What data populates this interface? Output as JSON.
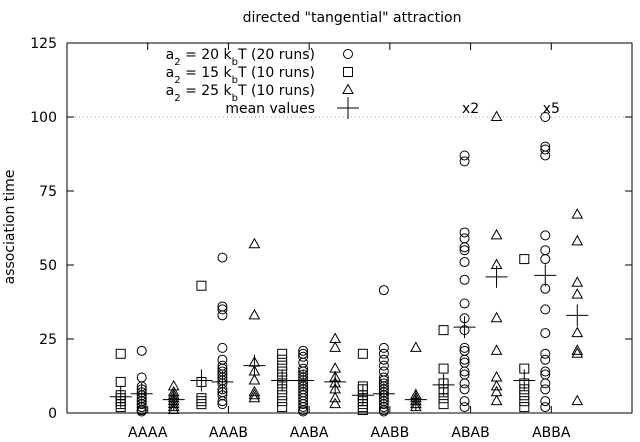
{
  "chart_data": {
    "type": "scatter",
    "title": "directed \"tangential\" attraction",
    "xlabel": "",
    "ylabel": "association time",
    "ylim": [
      0,
      125
    ],
    "yticks": [
      "0",
      "25",
      "50",
      "75",
      "100",
      "125"
    ],
    "categories": [
      "AAAA",
      "AAAB",
      "AABA",
      "AABB",
      "ABAB",
      "ABBA"
    ],
    "reference_line": {
      "y": 100,
      "style": "dotted"
    },
    "annotations": [
      {
        "text": "x2",
        "category": "ABAB",
        "y": 103
      },
      {
        "text": "x5",
        "category": "ABBA",
        "y": 103
      }
    ],
    "legend_position": "top-center",
    "series": [
      {
        "marker": "circle",
        "legend_main": "a",
        "legend_sub": "2",
        "legend_text": " = 20 k",
        "legend_sub2": "b",
        "legend_tail": "T (20 runs)",
        "values": {
          "AAAA": [
            21,
            12,
            9,
            8,
            7,
            6,
            5,
            5,
            4,
            4,
            3,
            3,
            2,
            2,
            1,
            1,
            1,
            0.5
          ],
          "AAAB": [
            52.5,
            36,
            35,
            33,
            22,
            18,
            16,
            15,
            14,
            13,
            12,
            11,
            10,
            8,
            7,
            6,
            4,
            3
          ],
          "AABA": [
            21,
            20,
            19,
            17,
            15,
            14,
            13,
            12,
            11,
            10,
            9,
            8,
            7,
            6,
            5,
            4,
            3,
            2,
            1,
            0.5
          ],
          "AABB": [
            41.5,
            22,
            20,
            18,
            16,
            14,
            12,
            11,
            10,
            9,
            8,
            7,
            6,
            5,
            4,
            3,
            2,
            1,
            0.5
          ],
          "ABAB": [
            87,
            85,
            61,
            59,
            56,
            55,
            51,
            45,
            37,
            32,
            28,
            22,
            21,
            18,
            17,
            14,
            13,
            10,
            8,
            4,
            2
          ],
          "ABBA": [
            100,
            90,
            89,
            87,
            60,
            55,
            52,
            42,
            35,
            27,
            20,
            18,
            14,
            13,
            10,
            8,
            4,
            2
          ]
        }
      },
      {
        "marker": "square",
        "legend_main": "a",
        "legend_sub": "2",
        "legend_text": " = 15 k",
        "legend_sub2": "b",
        "legend_tail": "T (10 runs)",
        "values": {
          "AAAA": [
            20,
            10.5,
            6,
            5,
            4,
            3,
            2
          ],
          "AAAB": [
            43,
            10.5,
            5,
            4,
            3
          ],
          "AABA": [
            20,
            18,
            16,
            14,
            12,
            10,
            8,
            6,
            4,
            2
          ],
          "AABB": [
            20,
            9,
            8,
            6,
            5,
            4,
            3,
            2,
            1
          ],
          "ABAB": [
            28,
            15,
            10,
            8,
            7,
            5,
            3
          ],
          "ABBA": [
            52,
            15,
            10,
            8,
            6,
            4,
            2
          ]
        }
      },
      {
        "marker": "triangle",
        "legend_main": "a",
        "legend_sub": "2",
        "legend_text": " = 25 k",
        "legend_sub2": "b",
        "legend_tail": "T (10 runs)",
        "values": {
          "AAAA": [
            9,
            7,
            6,
            5,
            4,
            3,
            2,
            1
          ],
          "AAAB": [
            57,
            33,
            17,
            14,
            11,
            7,
            6,
            5
          ],
          "AABA": [
            25,
            22,
            15,
            12,
            10,
            8,
            5,
            3
          ],
          "AABB": [
            22,
            6,
            5,
            4,
            3,
            2
          ],
          "ABAB": [
            100,
            60,
            50,
            32,
            21,
            12,
            9,
            7,
            4
          ],
          "ABBA": [
            67,
            58,
            44,
            40,
            27,
            21,
            20,
            4
          ]
        }
      }
    ],
    "mean_values": {
      "legend_text": "mean values",
      "marker": "plus",
      "series": [
        {
          "AAAA": 6.5,
          "AAAB": 10.5,
          "AABA": 11,
          "AABB": 6.5,
          "ABAB": 29,
          "ABBA": 46.5
        },
        {
          "AAAA": 5.5,
          "AAAB": 11,
          "AABA": 11,
          "AABB": 6,
          "ABAB": 9.5,
          "ABBA": 11
        },
        {
          "AAAA": 4.5,
          "AAAB": 16,
          "AABA": 10.5,
          "AABB": 4.5,
          "ABAB": 46,
          "ABBA": 33
        }
      ]
    }
  }
}
